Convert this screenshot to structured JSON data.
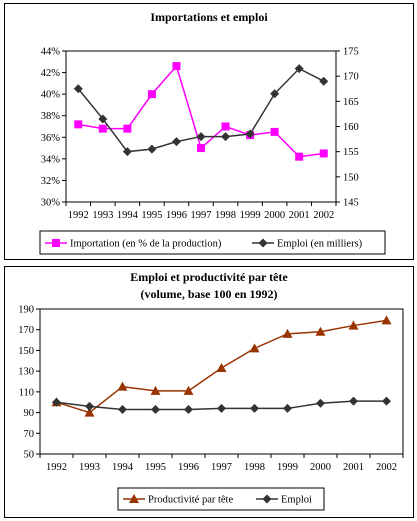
{
  "chart_data": [
    {
      "type": "line",
      "title": "Importations et emploi",
      "categories": [
        "1992",
        "1993",
        "1994",
        "1995",
        "1996",
        "1997",
        "1998",
        "1999",
        "2000",
        "2001",
        "2002"
      ],
      "y_left": {
        "min": 30,
        "max": 44,
        "step": 2,
        "tick_labels": [
          "30%",
          "32%",
          "34%",
          "36%",
          "38%",
          "40%",
          "42%",
          "44%"
        ]
      },
      "y_right": {
        "min": 145,
        "max": 175,
        "step": 5,
        "tick_labels": [
          "145",
          "150",
          "155",
          "160",
          "165",
          "170",
          "175"
        ]
      },
      "series": [
        {
          "name": "Importation (en % de la production)",
          "axis": "left",
          "color": "#ff00ff",
          "marker": "square",
          "values": [
            37.2,
            36.8,
            36.8,
            40.0,
            42.6,
            35.0,
            37.0,
            36.2,
            36.5,
            34.2,
            34.5
          ]
        },
        {
          "name": "Emploi (en milliers)",
          "axis": "right",
          "color": "#333333",
          "marker": "diamond",
          "values": [
            167.5,
            161.5,
            155.0,
            155.5,
            157.0,
            158.0,
            158.0,
            158.5,
            166.5,
            171.5,
            169.0
          ]
        }
      ],
      "legend": "bottom",
      "grid": false
    },
    {
      "type": "line",
      "title": "Emploi et productivité par tête",
      "subtitle": "(volume, base 100 en 1992)",
      "categories": [
        "1992",
        "1993",
        "1994",
        "1995",
        "1996",
        "1997",
        "1998",
        "1999",
        "2000",
        "2001",
        "2002"
      ],
      "y": {
        "min": 50,
        "max": 190,
        "step": 20,
        "tick_labels": [
          "50",
          "70",
          "90",
          "110",
          "130",
          "150",
          "170",
          "190"
        ]
      },
      "series": [
        {
          "name": "Productivité par tête",
          "color": "#993300",
          "marker": "triangle",
          "values": [
            100,
            90,
            115,
            111,
            111,
            133,
            152,
            166,
            168,
            174,
            179
          ]
        },
        {
          "name": "Emploi",
          "color": "#333333",
          "marker": "diamond",
          "values": [
            100,
            96,
            93,
            93,
            93,
            94,
            94,
            94,
            99,
            101,
            101
          ]
        }
      ],
      "legend": "bottom",
      "grid": false
    }
  ]
}
